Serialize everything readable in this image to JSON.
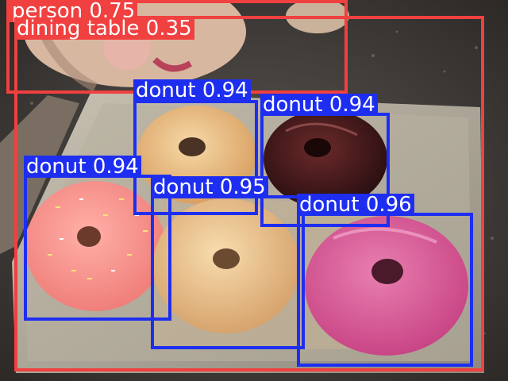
{
  "colors": {
    "person": "#f04040",
    "dining_table": "#f04040",
    "donut": "#1e2ef0"
  },
  "detections": [
    {
      "id": "person",
      "label": "person 0.75",
      "class": "person"
    },
    {
      "id": "dining-table",
      "label": "dining table 0.35",
      "class": "dining_table"
    },
    {
      "id": "donut-1",
      "label": "donut 0.94",
      "class": "donut"
    },
    {
      "id": "donut-2",
      "label": "donut 0.94",
      "class": "donut"
    },
    {
      "id": "donut-3",
      "label": "donut 0.94",
      "class": "donut"
    },
    {
      "id": "donut-4",
      "label": "donut 0.95",
      "class": "donut"
    },
    {
      "id": "donut-5",
      "label": "donut 0.96",
      "class": "donut"
    }
  ]
}
